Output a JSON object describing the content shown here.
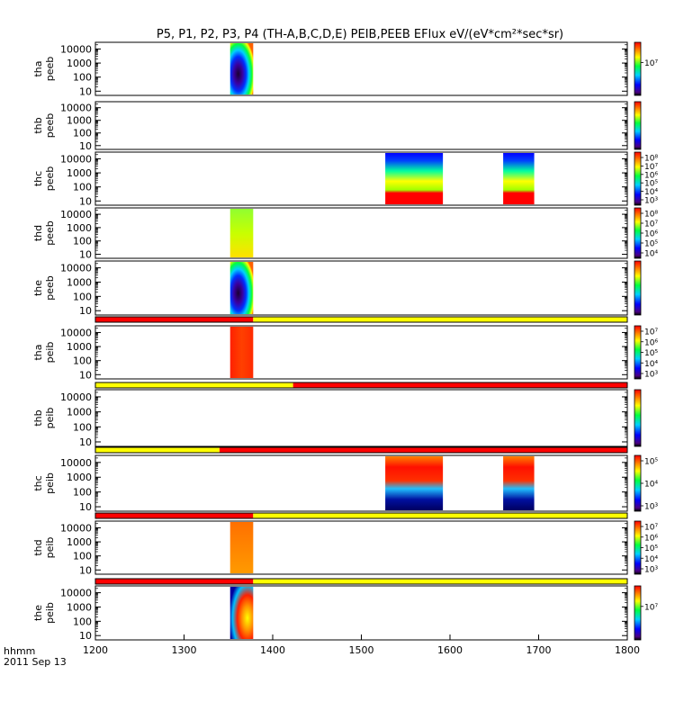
{
  "chart_data": {
    "type": "heatmap",
    "title": "P5, P1, P2, P3, P4 (TH-A,B,C,D,E) PEIB,PEEB EFlux eV/(eV*cm²*sec*sr)",
    "x_axis": {
      "range": [
        1200,
        1800
      ],
      "ticks": [
        "1200",
        "1300",
        "1400",
        "1500",
        "1600",
        "1700",
        "1800"
      ],
      "label_line1": "hhmm",
      "label_line2": "2011 Sep 13"
    },
    "y_ticks": [
      "10",
      "100",
      "1000",
      "10000"
    ],
    "panels": [
      {
        "id": "tha-peeb",
        "label": [
          "tha",
          "peeb"
        ],
        "kind": "spec",
        "blocks": [
          {
            "x0": 1352,
            "x1": 1378,
            "style": "peeb_a"
          }
        ],
        "colorbar_ticks": [
          "10⁷"
        ],
        "bar_before": null
      },
      {
        "id": "thb-peeb",
        "label": [
          "thb",
          "peeb"
        ],
        "kind": "spec",
        "blocks": [],
        "colorbar_ticks": [],
        "bar_before": null
      },
      {
        "id": "thc-peeb",
        "label": [
          "thc",
          "peeb"
        ],
        "kind": "spec",
        "blocks": [
          {
            "x0": 1527,
            "x1": 1592,
            "style": "peeb_c"
          },
          {
            "x0": 1660,
            "x1": 1695,
            "style": "peeb_c"
          }
        ],
        "colorbar_ticks": [
          "10⁸",
          "10⁷",
          "10⁶",
          "10⁵",
          "10⁴",
          "10³"
        ],
        "bar_before": null
      },
      {
        "id": "thd-peeb",
        "label": [
          "thd",
          "peeb"
        ],
        "kind": "spec",
        "blocks": [
          {
            "x0": 1352,
            "x1": 1378,
            "style": "peeb_d"
          }
        ],
        "colorbar_ticks": [
          "10⁸",
          "10⁷",
          "10⁶",
          "10⁵",
          "10⁴"
        ],
        "bar_before": null
      },
      {
        "id": "the-peeb",
        "label": [
          "the",
          "peeb"
        ],
        "kind": "spec",
        "blocks": [
          {
            "x0": 1352,
            "x1": 1378,
            "style": "peeb_a"
          }
        ],
        "colorbar_ticks": [],
        "bar_before": null
      },
      {
        "id": "tha-peib",
        "label": [
          "tha",
          "peib"
        ],
        "kind": "spec",
        "blocks": [
          {
            "x0": 1352,
            "x1": 1378,
            "style": "peib_red"
          }
        ],
        "colorbar_ticks": [
          "10⁷",
          "10⁶",
          "10⁵",
          "10⁴",
          "10³"
        ],
        "bar_before": {
          "red_until": 1378
        }
      },
      {
        "id": "thb-peib",
        "label": [
          "thb",
          "peib"
        ],
        "kind": "spec",
        "blocks": [],
        "colorbar_ticks": [],
        "bar_before": {
          "yellow_until": 1423
        }
      },
      {
        "id": "thc-peib",
        "label": [
          "thc",
          "peib"
        ],
        "kind": "spec",
        "blocks": [
          {
            "x0": 1527,
            "x1": 1592,
            "style": "peib_c"
          },
          {
            "x0": 1660,
            "x1": 1695,
            "style": "peib_c"
          }
        ],
        "colorbar_ticks": [
          "10⁵",
          "10⁴",
          "10³"
        ],
        "bar_before": {
          "yellow_until": 1340
        }
      },
      {
        "id": "thd-peib",
        "label": [
          "thd",
          "peib"
        ],
        "kind": "spec",
        "blocks": [
          {
            "x0": 1352,
            "x1": 1378,
            "style": "peib_orange"
          }
        ],
        "colorbar_ticks": [
          "10⁷",
          "10⁶",
          "10⁵",
          "10⁴",
          "10³"
        ],
        "bar_before": {
          "red_until": 1378
        }
      },
      {
        "id": "the-peib",
        "label": [
          "the",
          "peib"
        ],
        "kind": "spec",
        "blocks": [
          {
            "x0": 1352,
            "x1": 1378,
            "style": "peib_e"
          }
        ],
        "colorbar_ticks": [
          "10⁷"
        ],
        "bar_before": {
          "red_until": 1378
        }
      }
    ],
    "colors": {
      "red": "#ff0000",
      "yellow": "#ffff00",
      "orange": "#ff8c00",
      "green": "#a8ff00",
      "blue": "#0000ff",
      "navy": "#1b0040"
    },
    "grid": false
  }
}
